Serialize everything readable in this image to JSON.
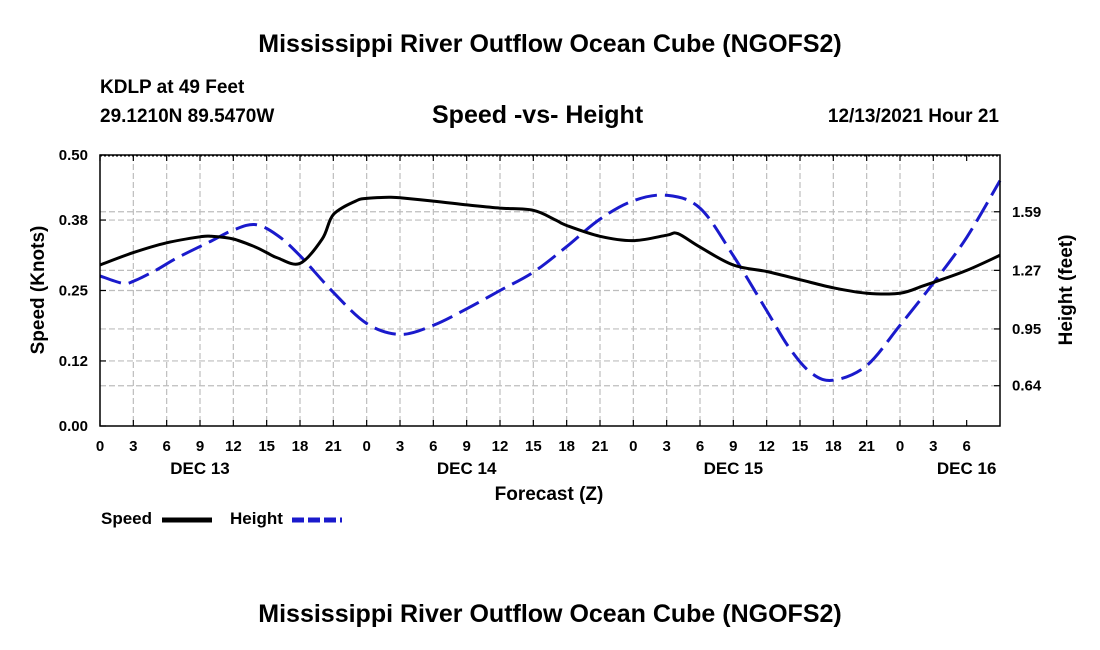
{
  "header": {
    "title": "Mississippi River Outflow Ocean Cube (NGOFS2)",
    "station": "KDLP at 49 Feet",
    "coordinates": "29.1210N  89.5470W",
    "subtitle": "Speed -vs- Height",
    "datetime": "12/13/2021 Hour 21"
  },
  "footer": {
    "title": "Mississippi River Outflow Ocean Cube (NGOFS2)"
  },
  "legend": {
    "speed_label": "Speed",
    "height_label": "Height"
  },
  "colors": {
    "speed": "#000000",
    "height": "#1a1acc",
    "grid": "#bdbdbd"
  },
  "chart_data": {
    "type": "line",
    "title": "Speed -vs- Height",
    "xlabel": "Forecast (Z)",
    "ylabel": "Speed (Knots)",
    "y2label": "Height (feet)",
    "x_range_hours": [
      0,
      81
    ],
    "x_tick_labels": [
      "0",
      "3",
      "6",
      "9",
      "12",
      "15",
      "18",
      "21",
      "0",
      "3",
      "6",
      "9",
      "12",
      "15",
      "18",
      "21",
      "0",
      "3",
      "6",
      "9",
      "12",
      "15",
      "18",
      "21",
      "0",
      "3",
      "6"
    ],
    "day_labels": [
      {
        "label": "DEC 13",
        "hour": 9
      },
      {
        "label": "DEC 14",
        "hour": 33
      },
      {
        "label": "DEC 15",
        "hour": 57
      },
      {
        "label": "DEC 16",
        "hour": 78
      }
    ],
    "ylim": [
      0,
      0.5
    ],
    "y_ticks": [
      0.0,
      0.12,
      0.25,
      0.38,
      0.5
    ],
    "y_tick_labels": [
      "0.00",
      "0.12",
      "0.25",
      "0.38",
      "0.50"
    ],
    "y2lim": [
      0.42,
      1.9
    ],
    "y2_ticks": [
      0.64,
      0.95,
      1.27,
      1.59
    ],
    "y2_tick_labels": [
      "0.64",
      "0.95",
      "1.27",
      "1.59"
    ],
    "grid": true,
    "legend_position": "bottom-left",
    "series": [
      {
        "name": "Speed",
        "axis": "left",
        "style": "solid",
        "x": [
          0,
          3,
          6,
          9,
          10,
          12,
          14,
          15,
          16,
          18,
          20,
          21,
          23,
          24,
          26,
          27,
          30,
          33,
          36,
          39,
          41,
          42,
          45,
          48,
          51,
          52,
          54,
          57,
          60,
          63,
          66,
          69,
          72,
          74,
          75,
          78,
          81
        ],
        "y": [
          0.297,
          0.32,
          0.338,
          0.349,
          0.35,
          0.345,
          0.33,
          0.32,
          0.31,
          0.3,
          0.345,
          0.39,
          0.415,
          0.42,
          0.422,
          0.421,
          0.415,
          0.408,
          0.402,
          0.398,
          0.38,
          0.37,
          0.35,
          0.342,
          0.352,
          0.355,
          0.33,
          0.297,
          0.285,
          0.27,
          0.255,
          0.245,
          0.245,
          0.258,
          0.265,
          0.287,
          0.315
        ]
      },
      {
        "name": "Height",
        "axis": "right",
        "style": "dashed",
        "x": [
          0,
          2,
          3,
          5,
          7,
          10,
          12,
          14,
          16,
          18,
          21,
          24,
          27,
          30,
          33,
          36,
          39,
          42,
          45,
          48,
          51,
          54,
          57,
          60,
          62,
          64,
          66,
          69,
          72,
          75,
          78,
          81
        ],
        "y": [
          1.24,
          1.2,
          1.21,
          1.27,
          1.34,
          1.43,
          1.49,
          1.52,
          1.46,
          1.35,
          1.15,
          0.98,
          0.92,
          0.97,
          1.06,
          1.16,
          1.26,
          1.4,
          1.55,
          1.65,
          1.68,
          1.61,
          1.35,
          1.05,
          0.85,
          0.71,
          0.67,
          0.75,
          0.97,
          1.2,
          1.45,
          1.76
        ]
      }
    ]
  }
}
